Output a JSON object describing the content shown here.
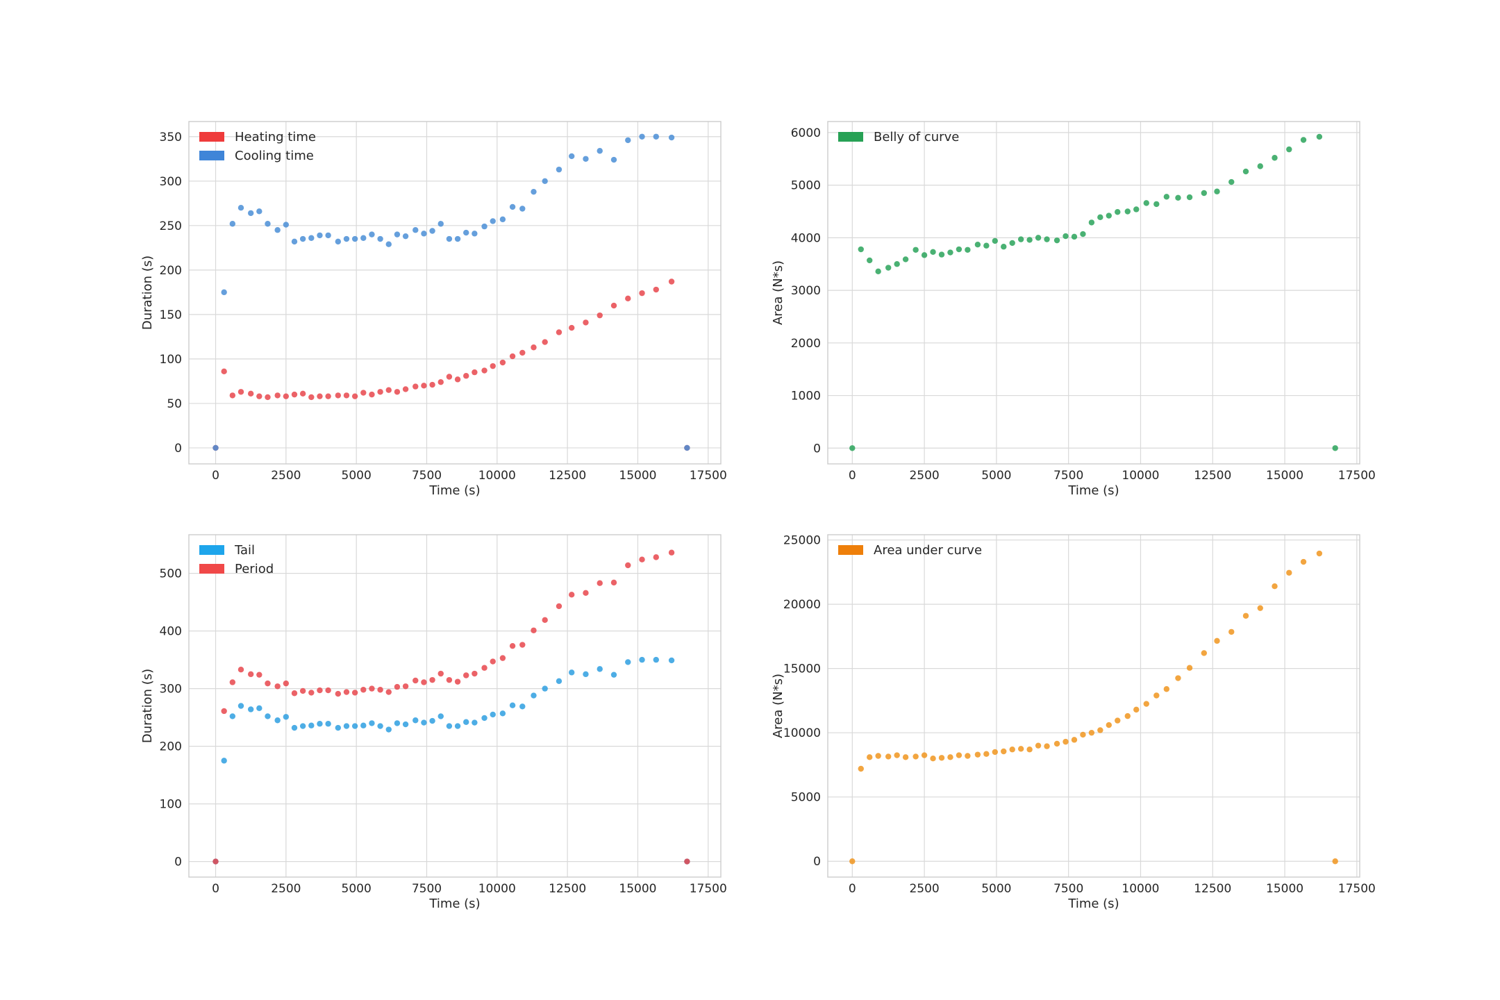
{
  "chart_data": [
    {
      "type": "scatter",
      "xlabel": "Time (s)",
      "ylabel": "Duration (s)",
      "xlim": [
        -950,
        17950
      ],
      "ylim": [
        -18,
        367
      ],
      "xticks": [
        0,
        2500,
        5000,
        7500,
        10000,
        12500,
        15000,
        17500
      ],
      "yticks": [
        0,
        50,
        100,
        150,
        200,
        250,
        300,
        350
      ],
      "legend_position": "upper-left",
      "grid": true,
      "series": [
        {
          "name": "Heating time",
          "color": "#e8474c",
          "legend_color": "#ef3b3b",
          "x": [
            0,
            300,
            600,
            900,
            1250,
            1550,
            1850,
            2200,
            2500,
            2800,
            3100,
            3400,
            3700,
            4000,
            4350,
            4650,
            4950,
            5250,
            5550,
            5850,
            6150,
            6450,
            6750,
            7100,
            7400,
            7700,
            8000,
            8300,
            8600,
            8900,
            9200,
            9550,
            9850,
            10200,
            10550,
            10900,
            11300,
            11700,
            12200,
            12650,
            13150,
            13650,
            14150,
            14650,
            15150,
            15650,
            16200,
            16750
          ],
          "y": [
            0,
            86,
            59,
            63,
            61,
            58,
            57,
            59,
            58,
            60,
            61,
            57,
            58,
            58,
            59,
            59,
            58,
            62,
            60,
            63,
            65,
            63,
            66,
            69,
            70,
            71,
            74,
            80,
            77,
            81,
            85,
            87,
            92,
            96,
            103,
            107,
            113,
            119,
            130,
            135,
            141,
            149,
            160,
            168,
            174,
            178,
            187,
            0
          ]
        },
        {
          "name": "Cooling time",
          "color": "#4a8ed6",
          "legend_color": "#3f85d8",
          "x": [
            0,
            300,
            600,
            900,
            1250,
            1550,
            1850,
            2200,
            2500,
            2800,
            3100,
            3400,
            3700,
            4000,
            4350,
            4650,
            4950,
            5250,
            5550,
            5850,
            6150,
            6450,
            6750,
            7100,
            7400,
            7700,
            8000,
            8300,
            8600,
            8900,
            9200,
            9550,
            9850,
            10200,
            10550,
            10900,
            11300,
            11700,
            12200,
            12650,
            13150,
            13650,
            14150,
            14650,
            15150,
            15650,
            16200,
            16750
          ],
          "y": [
            0,
            175,
            252,
            270,
            264,
            266,
            252,
            245,
            251,
            232,
            235,
            236,
            239,
            239,
            232,
            235,
            235,
            236,
            240,
            235,
            229,
            240,
            238,
            245,
            241,
            244,
            252,
            235,
            235,
            242,
            241,
            249,
            255,
            257,
            271,
            269,
            288,
            300,
            313,
            328,
            325,
            334,
            324,
            346,
            350,
            350,
            349,
            0
          ]
        }
      ]
    },
    {
      "type": "scatter",
      "xlabel": "Time (s)",
      "ylabel": "Area (N*s)",
      "xlim": [
        -850,
        17600
      ],
      "ylim": [
        -300,
        6210
      ],
      "xticks": [
        0,
        2500,
        5000,
        7500,
        10000,
        12500,
        15000,
        17500
      ],
      "yticks": [
        0,
        1000,
        2000,
        3000,
        4000,
        5000,
        6000
      ],
      "legend_position": "upper-left",
      "grid": true,
      "series": [
        {
          "name": "Belly of curve",
          "color": "#2aa35a",
          "legend_color": "#27a155",
          "x": [
            0,
            300,
            600,
            900,
            1250,
            1550,
            1850,
            2200,
            2500,
            2800,
            3100,
            3400,
            3700,
            4000,
            4350,
            4650,
            4950,
            5250,
            5550,
            5850,
            6150,
            6450,
            6750,
            7100,
            7400,
            7700,
            8000,
            8300,
            8600,
            8900,
            9200,
            9550,
            9850,
            10200,
            10550,
            10900,
            11300,
            11700,
            12200,
            12650,
            13150,
            13650,
            14150,
            14650,
            15150,
            15650,
            16200,
            16750
          ],
          "y": [
            0,
            3780,
            3570,
            3360,
            3430,
            3500,
            3590,
            3770,
            3670,
            3730,
            3680,
            3720,
            3780,
            3770,
            3870,
            3850,
            3940,
            3830,
            3900,
            3970,
            3960,
            4000,
            3970,
            3950,
            4030,
            4020,
            4070,
            4290,
            4390,
            4420,
            4490,
            4500,
            4540,
            4660,
            4640,
            4780,
            4760,
            4770,
            4850,
            4880,
            5060,
            5260,
            5360,
            5520,
            5680,
            5860,
            5920,
            0
          ]
        }
      ]
    },
    {
      "type": "scatter",
      "xlabel": "Time (s)",
      "ylabel": "Duration (s)",
      "xlim": [
        -950,
        17950
      ],
      "ylim": [
        -27,
        567
      ],
      "xticks": [
        0,
        2500,
        5000,
        7500,
        10000,
        12500,
        15000,
        17500
      ],
      "yticks": [
        0,
        100,
        200,
        300,
        400,
        500
      ],
      "legend_position": "upper-left",
      "grid": true,
      "series": [
        {
          "name": "Tail",
          "color": "#2e9fe0",
          "legend_color": "#1ea5eb",
          "x": [
            0,
            300,
            600,
            900,
            1250,
            1550,
            1850,
            2200,
            2500,
            2800,
            3100,
            3400,
            3700,
            4000,
            4350,
            4650,
            4950,
            5250,
            5550,
            5850,
            6150,
            6450,
            6750,
            7100,
            7400,
            7700,
            8000,
            8300,
            8600,
            8900,
            9200,
            9550,
            9850,
            10200,
            10550,
            10900,
            11300,
            11700,
            12200,
            12650,
            13150,
            13650,
            14150,
            14650,
            15150,
            15650,
            16200,
            16750
          ],
          "y": [
            0,
            175,
            252,
            270,
            264,
            266,
            252,
            245,
            251,
            232,
            235,
            236,
            239,
            239,
            232,
            235,
            235,
            236,
            240,
            235,
            229,
            240,
            238,
            245,
            241,
            244,
            252,
            235,
            235,
            242,
            241,
            249,
            255,
            257,
            271,
            269,
            288,
            300,
            313,
            328,
            325,
            334,
            324,
            346,
            350,
            350,
            349,
            0
          ]
        },
        {
          "name": "Period",
          "color": "#e8474c",
          "legend_color": "#f04848",
          "x": [
            0,
            300,
            600,
            900,
            1250,
            1550,
            1850,
            2200,
            2500,
            2800,
            3100,
            3400,
            3700,
            4000,
            4350,
            4650,
            4950,
            5250,
            5550,
            5850,
            6150,
            6450,
            6750,
            7100,
            7400,
            7700,
            8000,
            8300,
            8600,
            8900,
            9200,
            9550,
            9850,
            10200,
            10550,
            10900,
            11300,
            11700,
            12200,
            12650,
            13150,
            13650,
            14150,
            14650,
            15150,
            15650,
            16200,
            16750
          ],
          "y": [
            0,
            261,
            311,
            333,
            325,
            324,
            309,
            304,
            309,
            292,
            296,
            293,
            297,
            297,
            291,
            294,
            293,
            298,
            300,
            298,
            294,
            303,
            304,
            314,
            311,
            315,
            326,
            315,
            312,
            323,
            326,
            336,
            347,
            353,
            374,
            376,
            401,
            419,
            443,
            463,
            466,
            483,
            484,
            514,
            524,
            528,
            536,
            0
          ]
        }
      ]
    },
    {
      "type": "scatter",
      "xlabel": "Time (s)",
      "ylabel": "Area (N*s)",
      "xlim": [
        -850,
        17600
      ],
      "ylim": [
        -1230,
        25410
      ],
      "xticks": [
        0,
        2500,
        5000,
        7500,
        10000,
        12500,
        15000,
        17500
      ],
      "yticks": [
        0,
        5000,
        10000,
        15000,
        20000,
        25000
      ],
      "legend_position": "upper-left",
      "grid": true,
      "series": [
        {
          "name": "Area under curve",
          "color": "#f0951e",
          "legend_color": "#ee7f0a",
          "x": [
            0,
            300,
            600,
            900,
            1250,
            1550,
            1850,
            2200,
            2500,
            2800,
            3100,
            3400,
            3700,
            4000,
            4350,
            4650,
            4950,
            5250,
            5550,
            5850,
            6150,
            6450,
            6750,
            7100,
            7400,
            7700,
            8000,
            8300,
            8600,
            8900,
            9200,
            9550,
            9850,
            10200,
            10550,
            10900,
            11300,
            11700,
            12200,
            12650,
            13150,
            13650,
            14150,
            14650,
            15150,
            15650,
            16200,
            16750
          ],
          "y": [
            0,
            7200,
            8100,
            8200,
            8150,
            8250,
            8100,
            8150,
            8250,
            8000,
            8050,
            8100,
            8250,
            8200,
            8300,
            8350,
            8500,
            8550,
            8700,
            8750,
            8700,
            9000,
            8950,
            9150,
            9300,
            9450,
            9850,
            10000,
            10200,
            10600,
            10950,
            11300,
            11800,
            12250,
            12900,
            13400,
            14250,
            15050,
            16200,
            17150,
            17850,
            19100,
            19700,
            21400,
            22450,
            23300,
            23950,
            0
          ]
        }
      ]
    }
  ]
}
